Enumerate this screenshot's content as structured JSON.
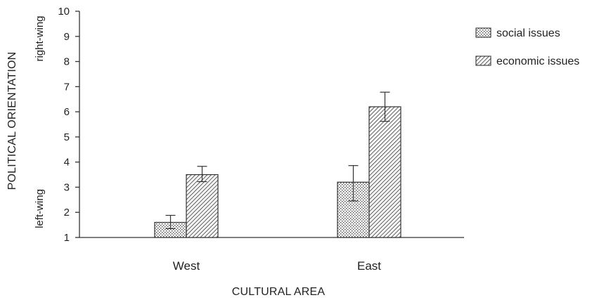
{
  "chart_data": {
    "type": "bar",
    "xlabel": "CULTURAL AREA",
    "ylabel": "POLITICAL ORIENTATION",
    "ylabel_top": "right-wing",
    "ylabel_bottom": "left-wing",
    "categories": [
      "West",
      "East"
    ],
    "ylim": [
      1,
      10
    ],
    "yticks": [
      1,
      2,
      3,
      4,
      5,
      6,
      7,
      8,
      9,
      10
    ],
    "grid": false,
    "legend_position": "top-right",
    "series": [
      {
        "name": "social issues",
        "pattern": "dotted",
        "values": [
          1.6,
          3.2
        ],
        "error_low": [
          1.35,
          2.45
        ],
        "error_high": [
          1.88,
          3.86
        ]
      },
      {
        "name": "economic issues",
        "pattern": "diagonal-hatch",
        "values": [
          3.5,
          6.2
        ],
        "error_low": [
          3.22,
          5.62
        ],
        "error_high": [
          3.83,
          6.78
        ]
      }
    ]
  }
}
